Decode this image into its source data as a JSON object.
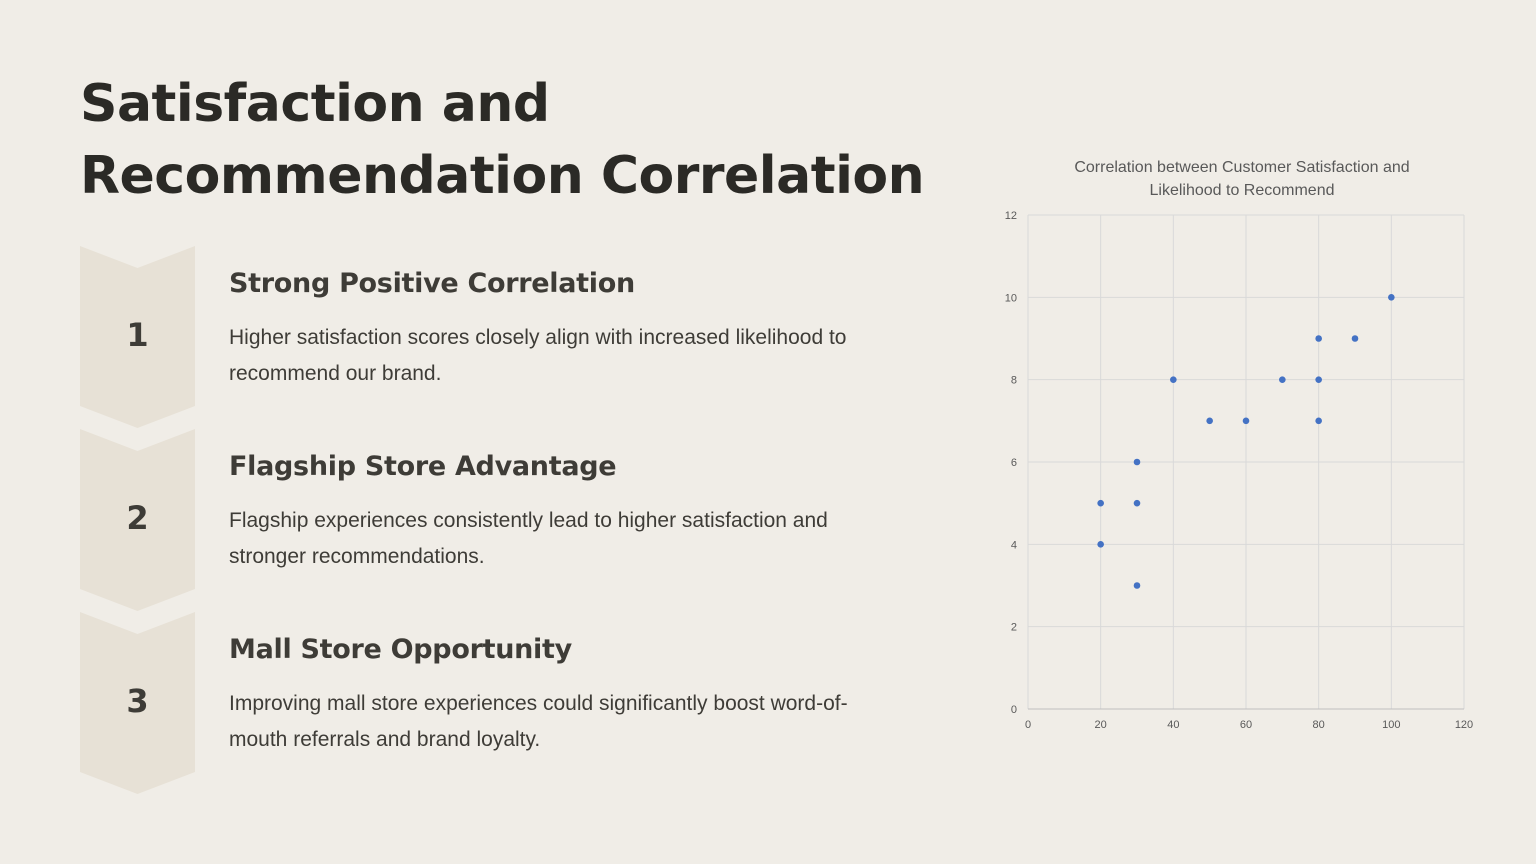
{
  "slide": {
    "title_line1": "Satisfaction and",
    "title_line2": "Recommendation Correlation"
  },
  "steps": [
    {
      "number": "1",
      "title": "Strong Positive Correlation",
      "description": "Higher satisfaction scores closely align with increased likelihood to recommend our brand."
    },
    {
      "number": "2",
      "title": "Flagship Store Advantage",
      "description": "Flagship experiences consistently lead to higher satisfaction and stronger recommendations."
    },
    {
      "number": "3",
      "title": "Mall Store Opportunity",
      "description": "Improving mall store experiences could significantly boost word-of-mouth referrals and brand loyalty."
    }
  ],
  "colors": {
    "background": "#f0ede7",
    "chevron": "#e7e1d6",
    "point": "#4472c4",
    "grid": "#d9d9d9"
  },
  "chart_data": {
    "type": "scatter",
    "title_line1": "Correlation between Customer Satisfaction and",
    "title_line2": "Likelihood to Recommend",
    "xlabel": "",
    "ylabel": "",
    "xlim": [
      0,
      120
    ],
    "ylim": [
      0,
      12
    ],
    "x_ticks": [
      0,
      20,
      40,
      60,
      80,
      100,
      120
    ],
    "y_ticks": [
      0,
      2,
      4,
      6,
      8,
      10,
      12
    ],
    "grid": true,
    "legend": "none",
    "points": [
      {
        "x": 20,
        "y": 5
      },
      {
        "x": 20,
        "y": 4
      },
      {
        "x": 30,
        "y": 6
      },
      {
        "x": 30,
        "y": 5
      },
      {
        "x": 30,
        "y": 3
      },
      {
        "x": 40,
        "y": 8
      },
      {
        "x": 50,
        "y": 7
      },
      {
        "x": 60,
        "y": 7
      },
      {
        "x": 70,
        "y": 8
      },
      {
        "x": 80,
        "y": 9
      },
      {
        "x": 80,
        "y": 8
      },
      {
        "x": 80,
        "y": 7
      },
      {
        "x": 90,
        "y": 9
      },
      {
        "x": 100,
        "y": 10
      }
    ]
  }
}
